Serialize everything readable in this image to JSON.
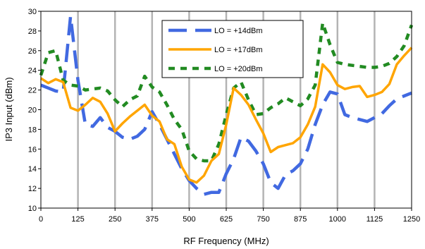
{
  "chart_data": {
    "type": "line",
    "title": "",
    "xlabel": "RF Frequency (MHz)",
    "ylabel": "IP3 Input (dBm)",
    "xlim": [
      0,
      1250
    ],
    "ylim": [
      10,
      30
    ],
    "xticks": [
      0,
      125,
      250,
      375,
      500,
      625,
      750,
      875,
      1000,
      1125,
      1250
    ],
    "yticks": [
      10,
      12,
      14,
      16,
      18,
      20,
      22,
      24,
      26,
      28,
      30
    ],
    "grid": "vertical",
    "legend_position": "top-right",
    "series": [
      {
        "name": "LO = +14dBm",
        "color": "#4169E1",
        "style": "long-dash",
        "x": [
          0,
          25,
          50,
          75,
          100,
          125,
          150,
          175,
          200,
          225,
          250,
          275,
          300,
          325,
          350,
          375,
          400,
          425,
          450,
          475,
          500,
          525,
          550,
          575,
          600,
          625,
          650,
          675,
          700,
          725,
          750,
          775,
          800,
          825,
          850,
          875,
          900,
          925,
          950,
          975,
          1000,
          1025,
          1050,
          1075,
          1100,
          1125,
          1150,
          1175,
          1200,
          1225,
          1250
        ],
        "y": [
          22.5,
          22.2,
          21.9,
          21.8,
          29.5,
          23,
          18.5,
          18.3,
          19.2,
          18.2,
          17.8,
          17.2,
          17.0,
          17.3,
          18.0,
          19.8,
          18.5,
          17.0,
          15.5,
          14.0,
          12.8,
          12.0,
          11.4,
          11.6,
          11.6,
          13.5,
          15.0,
          17.2,
          16.8,
          15.8,
          14.5,
          12.6,
          12.0,
          13.4,
          13.8,
          14.5,
          16.0,
          18.5,
          20.5,
          21.8,
          21.6,
          19.5,
          19.2,
          19.0,
          18.8,
          19.2,
          19.6,
          20.4,
          21.1,
          21.4,
          21.7
        ]
      },
      {
        "name": "LO = +17dBm",
        "color": "#FFA500",
        "style": "solid",
        "x": [
          0,
          25,
          50,
          75,
          100,
          125,
          150,
          175,
          200,
          225,
          250,
          275,
          300,
          325,
          350,
          375,
          400,
          425,
          450,
          475,
          500,
          525,
          550,
          575,
          600,
          625,
          650,
          675,
          700,
          725,
          750,
          775,
          800,
          825,
          850,
          875,
          900,
          925,
          950,
          975,
          1000,
          1025,
          1050,
          1075,
          1100,
          1125,
          1150,
          1175,
          1200,
          1225,
          1250
        ],
        "y": [
          23.2,
          22.7,
          23.1,
          22.8,
          20.2,
          19.9,
          20.5,
          21.2,
          20.8,
          19.6,
          17.8,
          18.6,
          19.3,
          19.9,
          20.5,
          19.4,
          18.8,
          17.0,
          16.5,
          14.2,
          12.9,
          12.6,
          13.3,
          14.8,
          15.5,
          18.5,
          22.2,
          21.5,
          20.5,
          19.0,
          17.6,
          15.7,
          16.2,
          16.4,
          16.6,
          17.2,
          18.5,
          20.3,
          24.6,
          23.8,
          22.5,
          22.1,
          22.3,
          22.4,
          21.3,
          21.5,
          21.8,
          22.6,
          24.6,
          25.5,
          26.3
        ]
      },
      {
        "name": "LO = +20dBm",
        "color": "#228B22",
        "style": "short-dash",
        "x": [
          0,
          25,
          50,
          75,
          100,
          125,
          150,
          175,
          200,
          225,
          250,
          275,
          300,
          325,
          350,
          375,
          400,
          425,
          450,
          475,
          500,
          525,
          550,
          575,
          600,
          625,
          650,
          675,
          700,
          725,
          750,
          775,
          800,
          825,
          850,
          875,
          900,
          925,
          950,
          975,
          1000,
          1025,
          1050,
          1075,
          1100,
          1125,
          1150,
          1175,
          1200,
          1225,
          1250
        ],
        "y": [
          23.5,
          25.8,
          26.0,
          23.0,
          22.5,
          22.4,
          22.0,
          22.1,
          22.2,
          21.9,
          21.0,
          20.3,
          21.0,
          21.4,
          23.4,
          22.3,
          21.8,
          20.5,
          19.0,
          18.0,
          15.8,
          15.0,
          14.8,
          14.8,
          16.5,
          19.5,
          22.2,
          22.8,
          21.0,
          19.5,
          19.6,
          20.2,
          20.6,
          21.2,
          20.8,
          20.4,
          21.1,
          22.5,
          28.8,
          26.6,
          24.8,
          24.6,
          24.5,
          24.4,
          24.3,
          24.3,
          24.4,
          24.7,
          25.4,
          26.5,
          28.6
        ]
      }
    ]
  }
}
